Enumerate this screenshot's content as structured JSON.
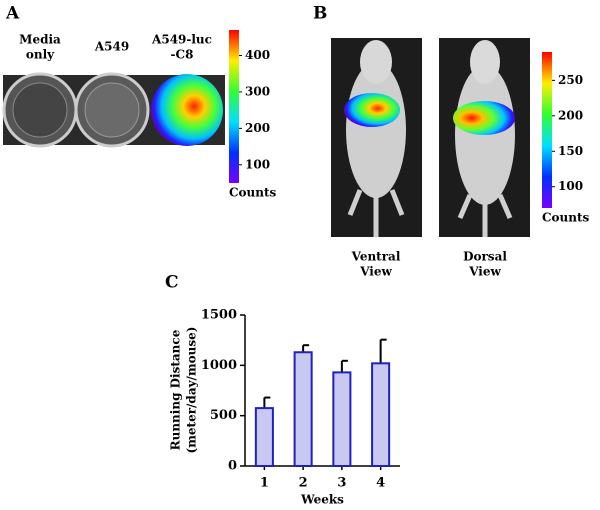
{
  "panel_a": {
    "label": "A",
    "wells": [
      [
        "Media",
        "only"
      ],
      [
        "A549"
      ],
      [
        "A549-luc",
        "-C8"
      ]
    ],
    "colorbar": {
      "lim": [
        50,
        470
      ],
      "ticks": [
        100,
        200,
        300,
        400
      ],
      "label": "Counts"
    }
  },
  "panel_b": {
    "label": "B",
    "views": [
      [
        "Ventral",
        "View"
      ],
      [
        "Dorsal",
        "View"
      ]
    ],
    "colorbar": {
      "lim": [
        70,
        290
      ],
      "ticks": [
        100,
        150,
        200,
        250
      ],
      "label": "Counts"
    }
  },
  "chart_data": {
    "type": "bar",
    "panel_label": "C",
    "xlabel": "Weeks",
    "ylabel": [
      "Running Distance",
      "(meter/day/mouse)"
    ],
    "categories": [
      "1",
      "2",
      "3",
      "4"
    ],
    "values": [
      575,
      1130,
      930,
      1020
    ],
    "errors": [
      105,
      70,
      115,
      235
    ],
    "color": "#c8c8f0",
    "edgecolor": "#2020c0",
    "ylim": [
      0,
      1500
    ],
    "yticks": [
      0,
      500,
      1000,
      1500
    ]
  }
}
